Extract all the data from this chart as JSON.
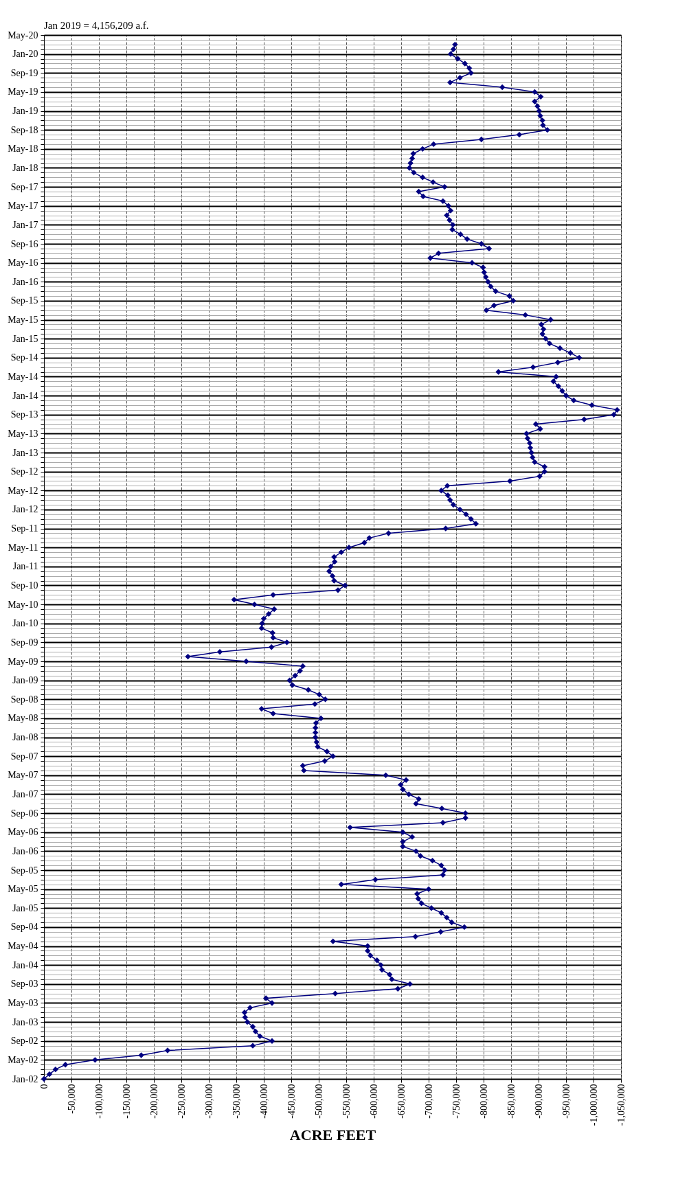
{
  "chart_data": {
    "type": "line",
    "orientation": "horizontal",
    "xlabel": "ACRE FEET",
    "annotations": [
      "Jan 2019 = 4,156,209 a.f."
    ],
    "categories": [
      "May-20",
      null,
      null,
      null,
      "Jan-20",
      null,
      null,
      null,
      "Sep-19",
      null,
      null,
      null,
      "May-19",
      null,
      null,
      null,
      "Jan-19",
      null,
      null,
      null,
      "Sep-18",
      null,
      null,
      null,
      "May-18",
      null,
      null,
      null,
      "Jan-18",
      null,
      null,
      null,
      "Sep-17",
      null,
      null,
      null,
      "May-17",
      null,
      null,
      null,
      "Jan-17",
      null,
      null,
      null,
      "Sep-16",
      null,
      null,
      null,
      "May-16",
      null,
      null,
      null,
      "Jan-16",
      null,
      null,
      null,
      "Sep-15",
      null,
      null,
      null,
      "May-15",
      null,
      null,
      null,
      "Jan-15",
      null,
      null,
      null,
      "Sep-14",
      null,
      null,
      null,
      "May-14",
      null,
      null,
      null,
      "Jan-14",
      null,
      null,
      null,
      "Sep-13",
      null,
      null,
      null,
      "May-13",
      null,
      null,
      null,
      "Jan-13",
      null,
      null,
      null,
      "Sep-12",
      null,
      null,
      null,
      "May-12",
      null,
      null,
      null,
      "Jan-12",
      null,
      null,
      null,
      "Sep-11",
      null,
      null,
      null,
      "May-11",
      null,
      null,
      null,
      "Jan-11",
      null,
      null,
      null,
      "Sep-10",
      null,
      null,
      null,
      "May-10",
      null,
      null,
      null,
      "Jan-10",
      null,
      null,
      null,
      "Sep-09",
      null,
      null,
      null,
      "May-09",
      null,
      null,
      null,
      "Jan-09",
      null,
      null,
      null,
      "Sep-08",
      null,
      null,
      null,
      "May-08",
      null,
      null,
      null,
      "Jan-08",
      null,
      null,
      null,
      "Sep-07",
      null,
      null,
      null,
      "May-07",
      null,
      null,
      null,
      "Jan-07",
      null,
      null,
      null,
      "Sep-06",
      null,
      null,
      null,
      "May-06",
      null,
      null,
      null,
      "Jan-06",
      null,
      null,
      null,
      "Sep-05",
      null,
      null,
      null,
      "May-05",
      null,
      null,
      null,
      "Jan-05",
      null,
      null,
      null,
      "Sep-04",
      null,
      null,
      null,
      "May-04",
      null,
      null,
      null,
      "Jan-04",
      null,
      null,
      null,
      "Sep-03",
      null,
      null,
      null,
      "May-03",
      null,
      null,
      null,
      "Jan-03",
      null,
      null,
      null,
      "Sep-02",
      null,
      null,
      null,
      "May-02",
      null,
      null,
      null,
      "Jan-02"
    ],
    "series": [
      {
        "color": "#000080",
        "values": [
          null,
          null,
          -748000,
          -745000,
          -740000,
          -753000,
          -766000,
          -774000,
          -777000,
          -757000,
          -739000,
          -834000,
          -893000,
          -904000,
          -893000,
          -898000,
          -901000,
          -903000,
          -907000,
          -908000,
          -916000,
          -865000,
          -796000,
          -709000,
          -689000,
          -672000,
          -670000,
          -667000,
          -665000,
          -673000,
          -689000,
          -708000,
          -729000,
          -682000,
          -690000,
          -726000,
          -736000,
          -740000,
          -733000,
          -738000,
          -744000,
          -743000,
          -758000,
          -770000,
          -796000,
          -810000,
          -718000,
          -703000,
          -779000,
          -799000,
          -801000,
          -804000,
          -808000,
          -813000,
          -822000,
          -847000,
          -854000,
          -819000,
          -805000,
          -876000,
          -922000,
          -905000,
          -909000,
          -907000,
          -913000,
          -920000,
          -939000,
          -958000,
          -974000,
          -935000,
          -890000,
          -827000,
          -932000,
          -927000,
          -936000,
          -943000,
          -950000,
          -964000,
          -997000,
          -1043000,
          -1037000,
          -983000,
          -895000,
          -903000,
          -878000,
          -880000,
          -884000,
          -885000,
          -887000,
          -889000,
          -893000,
          -911000,
          -911000,
          -902000,
          -848000,
          -734000,
          -723000,
          -735000,
          -739000,
          -745000,
          -757000,
          -768000,
          -777000,
          -786000,
          -731000,
          -627000,
          -592000,
          -583000,
          -555000,
          -541000,
          -528000,
          -529000,
          -522000,
          -519000,
          -525000,
          -528000,
          -548000,
          -535000,
          -417000,
          -346000,
          -383000,
          -419000,
          -409000,
          -400000,
          -397000,
          -396000,
          -416000,
          -417000,
          -442000,
          -414000,
          -320000,
          -262000,
          -368000,
          -471000,
          -466000,
          -457000,
          -447000,
          -452000,
          -481000,
          -501000,
          -512000,
          -493000,
          -396000,
          -417000,
          -504000,
          -495000,
          -494000,
          -494000,
          -494000,
          -496000,
          -498000,
          -515000,
          -526000,
          -511000,
          -471000,
          -473000,
          -622000,
          -659000,
          -649000,
          -653000,
          -664000,
          -682000,
          -677000,
          -724000,
          -767000,
          -767000,
          -726000,
          -557000,
          -653000,
          -670000,
          -653000,
          -653000,
          -677000,
          -685000,
          -707000,
          -723000,
          -729000,
          -726000,
          -603000,
          -541000,
          -700000,
          -679000,
          -681000,
          -687000,
          -705000,
          -723000,
          -733000,
          -742000,
          -765000,
          -722000,
          -676000,
          -526000,
          -589000,
          -589000,
          -594000,
          -606000,
          -613000,
          -615000,
          -629000,
          -633000,
          -666000,
          -644000,
          -530000,
          -404000,
          -415000,
          -375000,
          -365000,
          -366000,
          -370000,
          -380000,
          -385000,
          -393000,
          -415000,
          -380000,
          -225000,
          -177000,
          -93000,
          -39000,
          -21000,
          -10000,
          0
        ]
      }
    ],
    "xlim": [
      0,
      -1050000
    ],
    "xticks": [
      0,
      {
        "value": -50000,
        "label": "-50,000"
      },
      {
        "value": -100000,
        "label": "-100,000"
      },
      {
        "value": -150000,
        "label": "-150,000"
      },
      {
        "value": -200000,
        "label": "-200,000"
      },
      {
        "value": -250000,
        "label": "-250,000"
      },
      {
        "value": -300000,
        "label": "-300,000"
      },
      {
        "value": -350000,
        "label": "-350,000"
      },
      {
        "value": -400000,
        "label": "-400,000"
      },
      {
        "value": -450000,
        "label": "-450,000"
      },
      {
        "value": -500000,
        "label": "-500,000"
      },
      {
        "value": -550000,
        "label": "-550,000"
      },
      {
        "value": -600000,
        "label": "-600,000"
      },
      {
        "value": -650000,
        "label": "-650,000"
      },
      {
        "value": -700000,
        "label": "-700,000"
      },
      {
        "value": -750000,
        "label": "-750,000"
      },
      {
        "value": -800000,
        "label": "-800,000"
      },
      {
        "value": -850000,
        "label": "-850,000"
      },
      {
        "value": -900000,
        "label": "-900,000"
      },
      {
        "value": -950000,
        "label": "-950,000"
      },
      {
        "value": -1000000,
        "label": "-1,000,000"
      },
      {
        "value": -1050000,
        "label": "-1,050,000"
      }
    ],
    "grid": true,
    "marker": "diamond",
    "line_style": "solid"
  }
}
